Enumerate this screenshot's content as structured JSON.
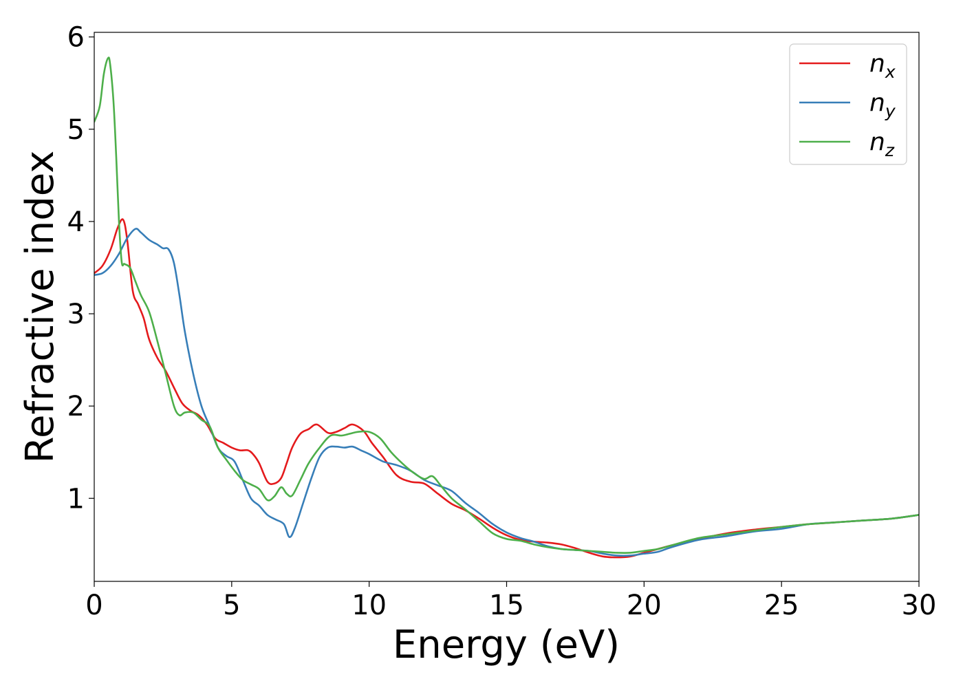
{
  "chart_data": {
    "type": "line",
    "title": "",
    "xlabel": "Energy (eV)",
    "ylabel": "Refractive index",
    "xlim": [
      0,
      30
    ],
    "ylim": [
      0.1,
      6.05
    ],
    "xticks": [
      0,
      5,
      10,
      15,
      20,
      25,
      30
    ],
    "xtick_labels": [
      "0",
      "5",
      "10",
      "15",
      "20",
      "25",
      "30"
    ],
    "yticks": [
      1,
      2,
      3,
      4,
      5,
      6
    ],
    "ytick_labels": [
      "1",
      "2",
      "3",
      "4",
      "5",
      "6"
    ],
    "grid": false,
    "legend": "top-right",
    "series": [
      {
        "name": "n",
        "subscript": "x",
        "color": "#e41a1c",
        "x": [
          0,
          0.3,
          0.6,
          0.85,
          1.05,
          1.2,
          1.4,
          1.6,
          1.8,
          2.0,
          2.3,
          2.6,
          2.9,
          3.2,
          3.5,
          3.8,
          4.1,
          4.4,
          4.7,
          5.0,
          5.3,
          5.6,
          5.8,
          6.0,
          6.3,
          6.55,
          6.8,
          7.0,
          7.2,
          7.5,
          7.8,
          8.1,
          8.5,
          8.8,
          9.1,
          9.4,
          9.8,
          10.1,
          10.5,
          11.0,
          11.5,
          12.0,
          12.5,
          13.0,
          13.5,
          14.0,
          14.5,
          15.0,
          15.5,
          16.0,
          16.5,
          17.0,
          17.5,
          18.0,
          18.5,
          19.0,
          19.5,
          20.0,
          20.5,
          21.0,
          22.0,
          23.0,
          24.0,
          25.0,
          26.0,
          27.0,
          28.0,
          29.0,
          30.0
        ],
        "y": [
          3.44,
          3.52,
          3.7,
          3.93,
          4.02,
          3.8,
          3.25,
          3.1,
          2.95,
          2.72,
          2.52,
          2.38,
          2.2,
          2.03,
          1.95,
          1.9,
          1.8,
          1.65,
          1.6,
          1.55,
          1.52,
          1.52,
          1.47,
          1.38,
          1.18,
          1.16,
          1.22,
          1.38,
          1.55,
          1.7,
          1.75,
          1.8,
          1.71,
          1.72,
          1.76,
          1.8,
          1.73,
          1.6,
          1.45,
          1.25,
          1.18,
          1.16,
          1.05,
          0.94,
          0.87,
          0.78,
          0.68,
          0.6,
          0.55,
          0.53,
          0.52,
          0.5,
          0.46,
          0.41,
          0.37,
          0.36,
          0.37,
          0.41,
          0.45,
          0.49,
          0.56,
          0.62,
          0.66,
          0.69,
          0.72,
          0.74,
          0.76,
          0.78,
          0.82
        ]
      },
      {
        "name": "n",
        "subscript": "y",
        "color": "#377eb8",
        "x": [
          0,
          0.3,
          0.6,
          0.9,
          1.2,
          1.5,
          1.7,
          2.0,
          2.3,
          2.5,
          2.7,
          2.9,
          3.1,
          3.3,
          3.6,
          3.9,
          4.2,
          4.5,
          4.8,
          5.1,
          5.4,
          5.7,
          6.0,
          6.3,
          6.6,
          6.9,
          7.1,
          7.3,
          7.6,
          7.9,
          8.2,
          8.5,
          8.8,
          9.1,
          9.4,
          9.7,
          10.0,
          10.5,
          11.0,
          11.5,
          12.0,
          12.5,
          13.0,
          13.5,
          14.0,
          14.5,
          15.0,
          15.5,
          16.0,
          16.5,
          17.0,
          17.5,
          18.0,
          18.5,
          19.0,
          19.5,
          20.0,
          20.5,
          21.0,
          22.0,
          23.0,
          24.0,
          25.0,
          26.0,
          27.0,
          28.0,
          29.0,
          30.0
        ],
        "y": [
          3.42,
          3.44,
          3.52,
          3.65,
          3.82,
          3.92,
          3.88,
          3.8,
          3.75,
          3.71,
          3.7,
          3.55,
          3.2,
          2.8,
          2.35,
          2.0,
          1.78,
          1.55,
          1.46,
          1.4,
          1.2,
          1.0,
          0.92,
          0.82,
          0.77,
          0.72,
          0.58,
          0.68,
          0.95,
          1.22,
          1.45,
          1.55,
          1.56,
          1.55,
          1.56,
          1.52,
          1.48,
          1.4,
          1.36,
          1.3,
          1.2,
          1.14,
          1.08,
          0.95,
          0.84,
          0.72,
          0.63,
          0.57,
          0.53,
          0.48,
          0.45,
          0.44,
          0.43,
          0.4,
          0.38,
          0.38,
          0.4,
          0.42,
          0.47,
          0.55,
          0.59,
          0.64,
          0.67,
          0.72,
          0.74,
          0.76,
          0.78,
          0.82
        ]
      },
      {
        "name": "n",
        "subscript": "z",
        "color": "#4daf4a",
        "x": [
          0,
          0.2,
          0.35,
          0.5,
          0.58,
          0.7,
          0.8,
          0.9,
          1.0,
          1.1,
          1.3,
          1.5,
          1.7,
          2.0,
          2.3,
          2.6,
          2.9,
          3.1,
          3.3,
          3.6,
          3.9,
          4.2,
          4.5,
          4.8,
          5.1,
          5.4,
          5.7,
          6.0,
          6.3,
          6.55,
          6.8,
          7.0,
          7.2,
          7.5,
          7.8,
          8.2,
          8.6,
          9.0,
          9.3,
          9.6,
          10.0,
          10.4,
          10.8,
          11.2,
          11.6,
          12.0,
          12.3,
          12.6,
          13.0,
          13.5,
          14.0,
          14.5,
          15.0,
          15.5,
          16.0,
          16.5,
          17.0,
          17.5,
          18.0,
          18.5,
          19.0,
          19.5,
          20.0,
          20.5,
          21.0,
          22.0,
          23.0,
          24.0,
          25.0,
          26.0,
          27.0,
          28.0,
          29.0,
          30.0
        ],
        "y": [
          5.08,
          5.25,
          5.6,
          5.77,
          5.7,
          5.3,
          4.7,
          4.0,
          3.56,
          3.54,
          3.5,
          3.35,
          3.2,
          3.02,
          2.7,
          2.35,
          2.0,
          1.9,
          1.93,
          1.93,
          1.85,
          1.78,
          1.55,
          1.42,
          1.3,
          1.2,
          1.15,
          1.1,
          0.98,
          1.02,
          1.12,
          1.05,
          1.03,
          1.2,
          1.38,
          1.55,
          1.68,
          1.68,
          1.7,
          1.72,
          1.72,
          1.65,
          1.5,
          1.38,
          1.28,
          1.21,
          1.24,
          1.14,
          1.0,
          0.88,
          0.75,
          0.62,
          0.56,
          0.54,
          0.5,
          0.47,
          0.45,
          0.44,
          0.43,
          0.42,
          0.41,
          0.41,
          0.43,
          0.45,
          0.49,
          0.57,
          0.61,
          0.65,
          0.69,
          0.72,
          0.74,
          0.76,
          0.78,
          0.82
        ]
      }
    ]
  }
}
